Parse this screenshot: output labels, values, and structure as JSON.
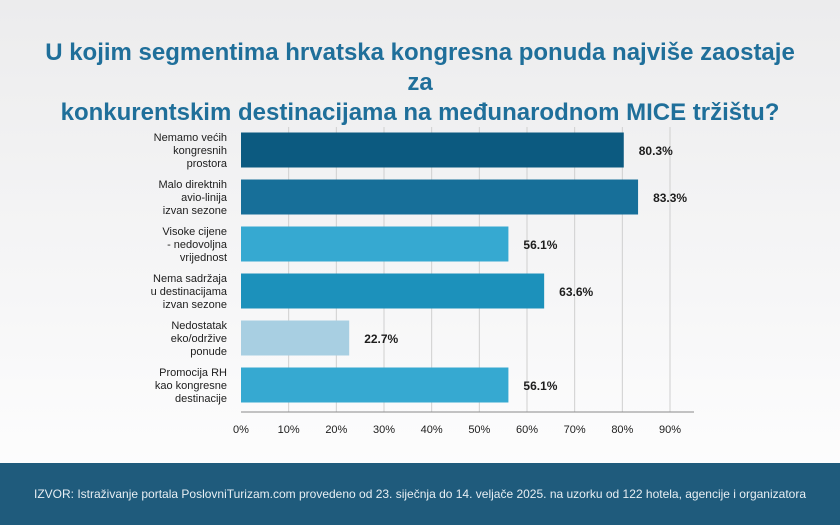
{
  "title": {
    "line1": "U kojim segmentima hrvatska kongresna ponuda najviše zaostaje za",
    "line2": "konkurentskim destinacijama na međunarodnom MICE tržištu?"
  },
  "footer": {
    "source": "IZVOR: Istraživanje portala PoslovniTurizam.com provedeno od 23. siječnja do 14. veljače 2025. na uzorku od 122 hotela, agencije i organizatora"
  },
  "chart_data": {
    "type": "bar",
    "orientation": "horizontal",
    "categories": [
      [
        "Nemamo većih",
        "kongresnih",
        "prostora"
      ],
      [
        "Malo direktnih",
        "avio-linija",
        "izvan sezone"
      ],
      [
        "Visoke cijene",
        "- nedovoljna",
        "vrijednost"
      ],
      [
        "Nema sadržaja",
        "u destinacijama",
        "izvan sezone"
      ],
      [
        "Nedostatak",
        "eko/održive",
        "ponude"
      ],
      [
        "Promocija RH",
        "kao kongresne",
        "destinacije"
      ]
    ],
    "values": [
      80.3,
      83.3,
      56.1,
      63.6,
      22.7,
      56.1
    ],
    "value_labels": [
      "80.3%",
      "83.3%",
      "56.1%",
      "63.6%",
      "22.7%",
      "56.1%"
    ],
    "bar_colors": [
      "#0c5a80",
      "#176f99",
      "#36a9d1",
      "#1c91bb",
      "#a8cfe2",
      "#36a9d1"
    ],
    "xlim": [
      0,
      90
    ],
    "ticks": [
      0,
      10,
      20,
      30,
      40,
      50,
      60,
      70,
      80,
      90
    ],
    "tick_labels": [
      "0%",
      "10%",
      "20%",
      "30%",
      "40%",
      "50%",
      "60%",
      "70%",
      "80%",
      "90%"
    ],
    "grid": true,
    "legend": false
  },
  "colors": {
    "title": "#1f6f9a",
    "footer_bg": "#1f5b7c",
    "grid": "#cfcfcf",
    "axis": "#8a8a8a"
  }
}
